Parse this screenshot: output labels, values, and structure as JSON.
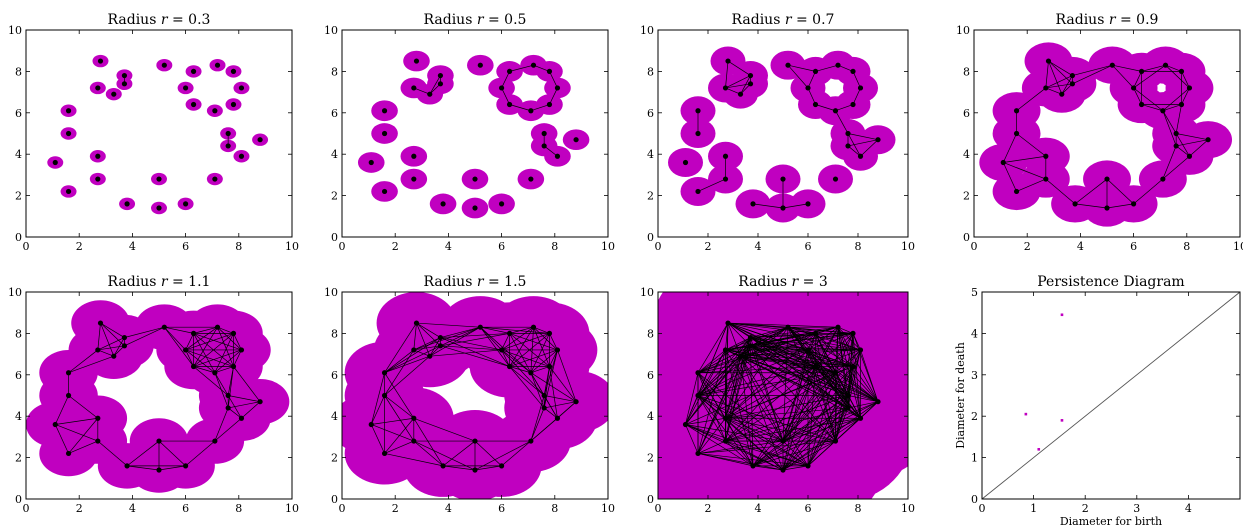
{
  "chart_data": {
    "type": "scatter",
    "points": [
      [
        1.1,
        3.6
      ],
      [
        1.6,
        2.2
      ],
      [
        1.6,
        5.0
      ],
      [
        1.6,
        6.1
      ],
      [
        2.7,
        2.8
      ],
      [
        2.7,
        3.9
      ],
      [
        2.7,
        7.2
      ],
      [
        2.8,
        8.5
      ],
      [
        3.3,
        6.9
      ],
      [
        3.7,
        7.4
      ],
      [
        3.7,
        7.8
      ],
      [
        3.8,
        1.6
      ],
      [
        5.0,
        2.8
      ],
      [
        5.0,
        1.4
      ],
      [
        5.2,
        8.3
      ],
      [
        6.0,
        1.6
      ],
      [
        6.0,
        7.2
      ],
      [
        6.3,
        6.4
      ],
      [
        6.3,
        8.0
      ],
      [
        7.1,
        6.1
      ],
      [
        7.1,
        2.8
      ],
      [
        7.2,
        8.3
      ],
      [
        7.6,
        4.4
      ],
      [
        7.6,
        5.0
      ],
      [
        7.8,
        6.4
      ],
      [
        7.8,
        8.0
      ],
      [
        8.1,
        3.9
      ],
      [
        8.1,
        7.2
      ],
      [
        8.8,
        4.7
      ]
    ],
    "panels": [
      {
        "title": "Radius r = 0.3",
        "radius": 0.3,
        "show_disks": true
      },
      {
        "title": "Radius r = 0.5",
        "radius": 0.5,
        "show_disks": true
      },
      {
        "title": "Radius r = 0.7",
        "radius": 0.7,
        "show_disks": true
      },
      {
        "title": "Radius r = 0.9",
        "radius": 0.9,
        "show_disks": true
      },
      {
        "title": "Radius r = 1.1",
        "radius": 1.1,
        "show_disks": true
      },
      {
        "title": "Radius r = 1.5",
        "radius": 1.5,
        "show_disks": true
      },
      {
        "title": "Radius r = 3",
        "radius": 3.0,
        "show_disks": true
      }
    ],
    "xlim": [
      0,
      10
    ],
    "ylim": [
      0,
      10
    ],
    "xticks": [
      "0",
      "2",
      "4",
      "6",
      "8",
      "10"
    ],
    "yticks": [
      "0",
      "2",
      "4",
      "6",
      "8",
      "10"
    ],
    "colors": {
      "disk": "#c000c0",
      "point": "#000000",
      "edge": "#000000",
      "diagonal": "#555555",
      "persistence_point": "#c000c0"
    },
    "persistence": {
      "type": "scatter",
      "title": "Persistence Diagram",
      "xlabel": "Diameter for birth",
      "ylabel": "Diameter for death",
      "xlim": [
        0,
        5
      ],
      "ylim": [
        0,
        5
      ],
      "xticks": [
        "0",
        "1",
        "2",
        "3",
        "4"
      ],
      "yticks": [
        "0",
        "1",
        "2",
        "3",
        "4",
        "5"
      ],
      "points": [
        [
          0.85,
          2.05
        ],
        [
          1.1,
          1.2
        ],
        [
          1.55,
          1.9
        ],
        [
          1.55,
          4.45
        ]
      ]
    }
  }
}
